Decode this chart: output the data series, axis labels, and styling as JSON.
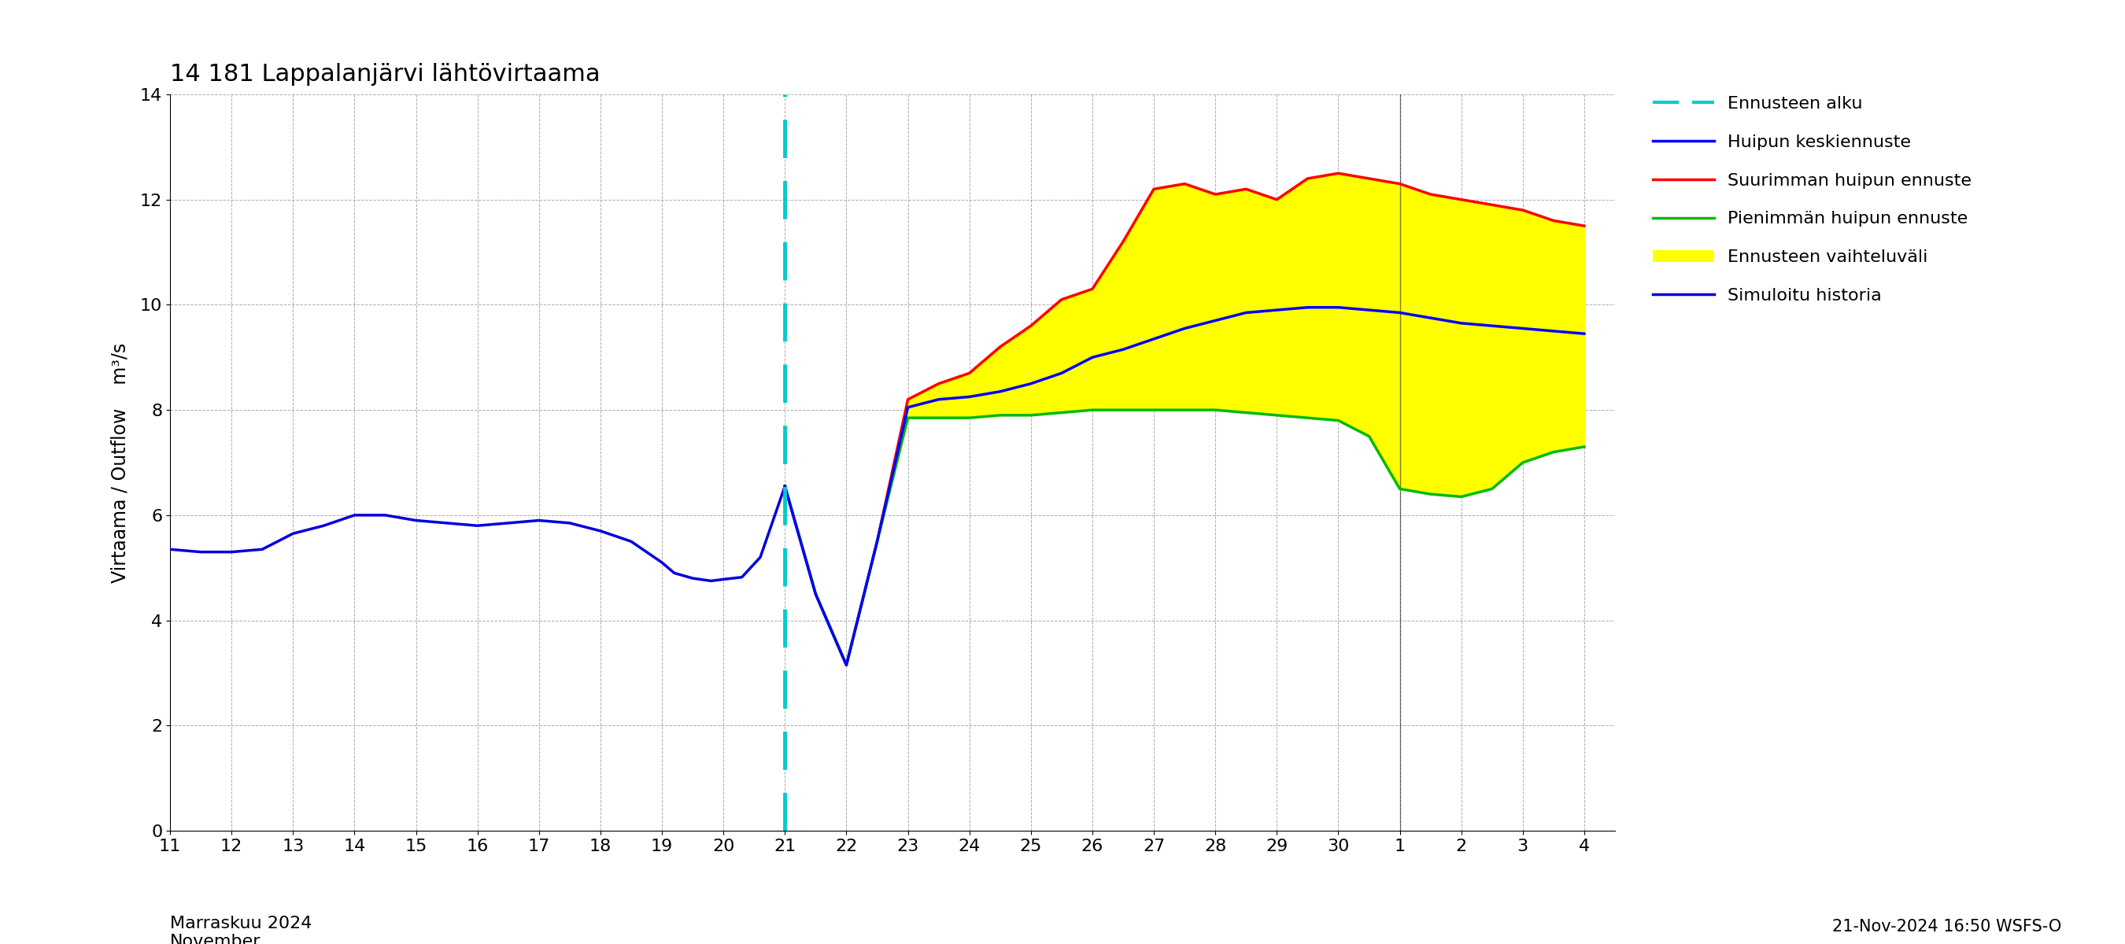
{
  "title": "14 181 Lappalanjärvi lähtövirtaama",
  "ylabel": "Virtaama / Outflow    m³/s",
  "ylim": [
    0,
    14
  ],
  "yticks": [
    0,
    2,
    4,
    6,
    8,
    10,
    12,
    14
  ],
  "footnote": "21-Nov-2024 16:50 WSFS-O",
  "forecast_start_x": 21,
  "legend_entries": [
    "Ennusteen alku",
    "Huipun keskiennuste",
    "Suurimman huipun ennuste",
    "Pienimmän huipun ennuste",
    "Ennusteen vaihteluväli",
    "Simuloitu historia"
  ],
  "history_x": [
    11,
    11.5,
    12,
    12.5,
    13,
    13.5,
    14,
    14.5,
    15,
    15.5,
    16,
    16.5,
    17,
    17.5,
    18,
    18.5,
    19,
    19.2,
    19.5,
    19.8,
    20,
    20.3,
    20.6,
    21
  ],
  "history_y": [
    5.35,
    5.3,
    5.3,
    5.35,
    5.65,
    5.8,
    6.0,
    6.0,
    5.9,
    5.85,
    5.8,
    5.85,
    5.9,
    5.85,
    5.7,
    5.5,
    5.1,
    4.9,
    4.8,
    4.75,
    4.78,
    4.82,
    5.2,
    6.55
  ],
  "forecast_x": [
    21,
    21.5,
    22,
    22.5,
    23,
    23.5,
    24,
    24.5,
    25,
    25.5,
    26,
    26.5,
    27,
    27.5,
    28,
    28.5,
    29,
    29.5,
    30,
    30.5,
    31,
    31.5,
    32,
    32.5,
    33,
    33.5,
    34
  ],
  "mean_y": [
    6.55,
    4.5,
    3.15,
    5.5,
    8.05,
    8.2,
    8.25,
    8.35,
    8.5,
    8.7,
    9.0,
    9.15,
    9.35,
    9.55,
    9.7,
    9.85,
    9.9,
    9.95,
    9.95,
    9.9,
    9.85,
    9.75,
    9.65,
    9.6,
    9.55,
    9.5,
    9.45
  ],
  "max_y": [
    6.55,
    4.5,
    3.15,
    5.5,
    8.2,
    8.5,
    8.7,
    9.2,
    9.6,
    10.1,
    10.3,
    11.2,
    12.2,
    12.3,
    12.1,
    12.2,
    12.0,
    12.4,
    12.5,
    12.4,
    12.3,
    12.1,
    12.0,
    11.9,
    11.8,
    11.6,
    11.5
  ],
  "min_y": [
    6.55,
    4.5,
    3.15,
    5.5,
    7.85,
    7.85,
    7.85,
    7.9,
    7.9,
    7.95,
    8.0,
    8.0,
    8.0,
    8.0,
    8.0,
    7.95,
    7.9,
    7.85,
    7.8,
    7.5,
    6.5,
    6.4,
    6.35,
    6.5,
    7.0,
    7.2,
    7.3
  ],
  "xtick_positions_nov": [
    11,
    12,
    13,
    14,
    15,
    16,
    17,
    18,
    19,
    20,
    21,
    22,
    23,
    24,
    25,
    26,
    27,
    28,
    29,
    30
  ],
  "xtick_labels_nov": [
    "11",
    "12",
    "13",
    "14",
    "15",
    "16",
    "17",
    "18",
    "19",
    "20",
    "21",
    "22",
    "23",
    "24",
    "25",
    "26",
    "27",
    "28",
    "29",
    "30"
  ],
  "xtick_positions_dec": [
    31,
    32,
    33,
    34
  ],
  "xtick_labels_dec": [
    "1",
    "2",
    "3",
    "4"
  ],
  "xlim_left": 11,
  "xlim_right": 34.5,
  "month_sep_x": 31,
  "background_color": "#ffffff",
  "grid_color": "#999999",
  "history_color": "#0000dd",
  "mean_color": "#0000ff",
  "max_color": "#ff0000",
  "min_color": "#00bb00",
  "fill_color": "#ffff00",
  "forecast_line_color": "#00cccc",
  "title_fontsize": 22,
  "label_fontsize": 17,
  "tick_fontsize": 16,
  "legend_fontsize": 16,
  "line_width": 2.5
}
